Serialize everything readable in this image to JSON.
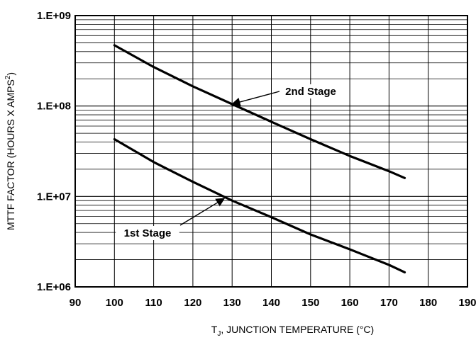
{
  "chart_data": {
    "type": "line",
    "log_y": true,
    "grid": true,
    "xlabel_main": "T",
    "xlabel_sub": "J",
    "xlabel_rest": ", JUNCTION TEMPERATURE (°C)",
    "ylabel_main": "MTTF FACTOR (HOURS X AMPS",
    "ylabel_sup": "2",
    "ylabel_end": ")",
    "xlim": [
      90,
      190
    ],
    "ylim": [
      1000000,
      1000000000
    ],
    "x_ticks": [
      {
        "value": 90,
        "label": "90"
      },
      {
        "value": 100,
        "label": "100"
      },
      {
        "value": 110,
        "label": "110"
      },
      {
        "value": 120,
        "label": "120"
      },
      {
        "value": 130,
        "label": "130"
      },
      {
        "value": 140,
        "label": "140"
      },
      {
        "value": 150,
        "label": "150"
      },
      {
        "value": 160,
        "label": "160"
      },
      {
        "value": 170,
        "label": "170"
      },
      {
        "value": 180,
        "label": "180"
      },
      {
        "value": 190,
        "label": "190"
      }
    ],
    "y_ticks": [
      {
        "value": 1000000,
        "label": "1.E+06"
      },
      {
        "value": 10000000,
        "label": "1.E+07"
      },
      {
        "value": 100000000,
        "label": "1.E+08"
      },
      {
        "value": 1000000000,
        "label": "1.E+09"
      }
    ],
    "series": [
      {
        "name": "2nd Stage",
        "x": [
          100,
          110,
          120,
          130,
          140,
          150,
          160,
          170,
          174
        ],
        "y": [
          470000000,
          270000000,
          165000000,
          105000000,
          67000000,
          43000000,
          28000000,
          19000000,
          16000000
        ]
      },
      {
        "name": "1st Stage",
        "x": [
          100,
          110,
          120,
          130,
          140,
          150,
          160,
          170,
          174
        ],
        "y": [
          43000000,
          24000000,
          14500000,
          9000000,
          5900000,
          3800000,
          2600000,
          1750000,
          1450000
        ]
      }
    ],
    "annotations": [
      {
        "text": "2nd Stage",
        "series": "2nd Stage",
        "arrow_to": [
          130,
          105000000
        ]
      },
      {
        "text": "1st Stage",
        "series": "1st Stage",
        "arrow_to": [
          128,
          9500000
        ]
      }
    ]
  }
}
